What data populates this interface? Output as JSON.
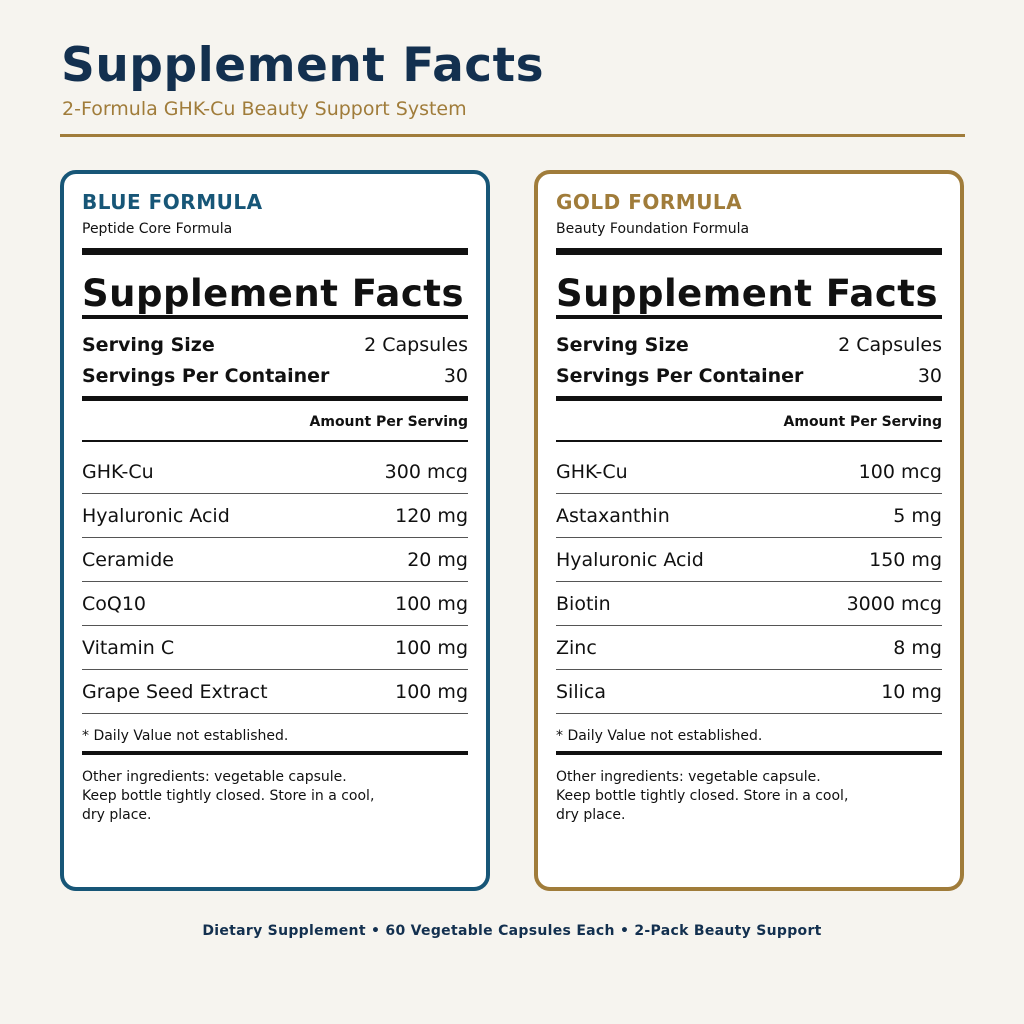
{
  "header": {
    "title": "Supplement Facts",
    "subtitle": "2-Formula GHK-Cu Beauty Support System"
  },
  "colors": {
    "navy": "#13304f",
    "blue_accent": "#175677",
    "gold_accent": "#a07c3a",
    "background": "#f6f4ef"
  },
  "panels": [
    {
      "name": "BLUE FORMULA",
      "subtitle": "Peptide Core Formula",
      "facts_title": "Supplement Facts",
      "serving_size_label": "Serving Size",
      "serving_size_value": "2 Capsules",
      "servings_label": "Servings Per Container",
      "servings_value": "30",
      "amount_header": "Amount Per Serving",
      "ingredients": [
        {
          "name": "GHK-Cu",
          "amount": "300 mcg"
        },
        {
          "name": "Hyaluronic Acid",
          "amount": "120 mg"
        },
        {
          "name": "Ceramide",
          "amount": "20 mg"
        },
        {
          "name": "CoQ10",
          "amount": "100 mg"
        },
        {
          "name": "Vitamin C",
          "amount": "100 mg"
        },
        {
          "name": "Grape Seed Extract",
          "amount": "100 mg"
        }
      ],
      "dv_note": "* Daily Value not established.",
      "other": "Other ingredients: vegetable capsule. Keep bottle tightly closed. Store in a cool, dry place."
    },
    {
      "name": "GOLD FORMULA",
      "subtitle": "Beauty Foundation Formula",
      "facts_title": "Supplement Facts",
      "serving_size_label": "Serving Size",
      "serving_size_value": "2 Capsules",
      "servings_label": "Servings Per Container",
      "servings_value": "30",
      "amount_header": "Amount Per Serving",
      "ingredients": [
        {
          "name": "GHK-Cu",
          "amount": "100 mcg"
        },
        {
          "name": "Astaxanthin",
          "amount": "5 mg"
        },
        {
          "name": "Hyaluronic Acid",
          "amount": "150 mg"
        },
        {
          "name": "Biotin",
          "amount": "3000 mcg"
        },
        {
          "name": "Zinc",
          "amount": "8 mg"
        },
        {
          "name": "Silica",
          "amount": "10 mg"
        }
      ],
      "dv_note": "* Daily Value not established.",
      "other": "Other ingredients: vegetable capsule. Keep bottle tightly closed. Store in a cool, dry place."
    }
  ],
  "footer": "Dietary Supplement • 60 Vegetable Capsules Each • 2-Pack Beauty Support"
}
